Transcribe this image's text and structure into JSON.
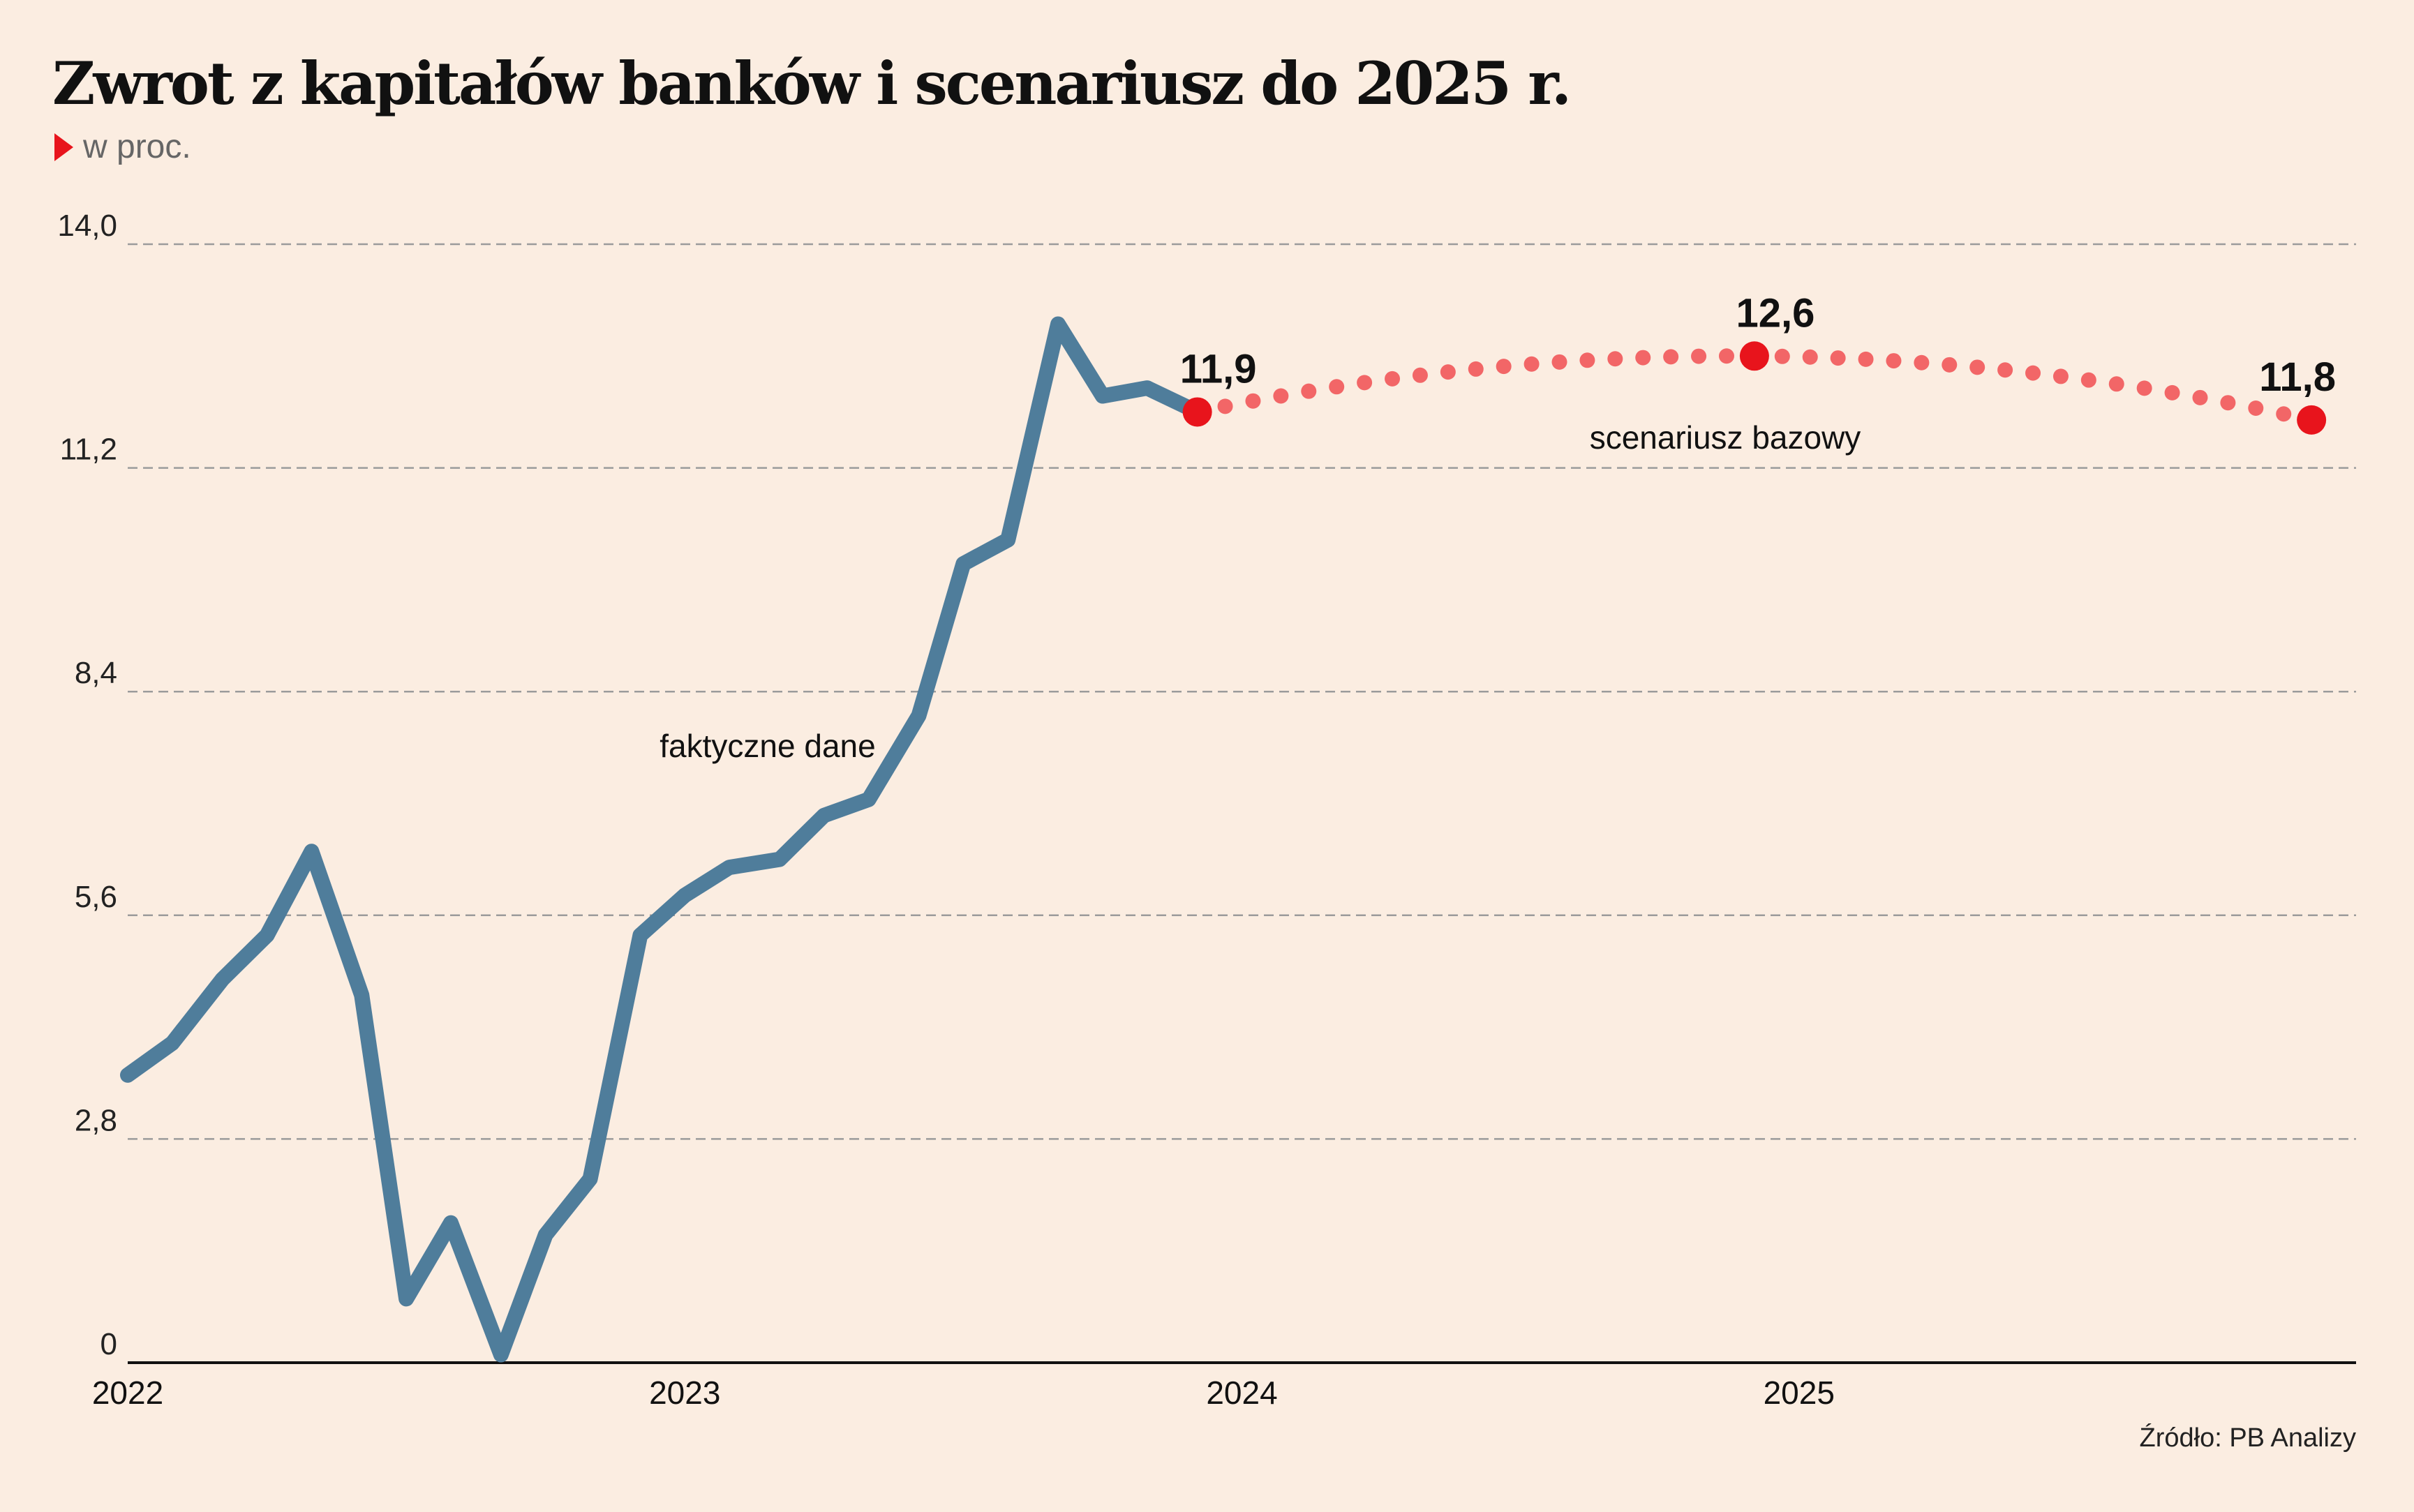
{
  "title": "Zwrot z kapitałów banków i scenariusz do 2025 r.",
  "subtitle": "w proc.",
  "source": "Źródło: PB Analizy",
  "colors": {
    "background": "#fbede1",
    "actual": "#4f7d9b",
    "scenario": "#f26667",
    "scenario_point": "#e8141c",
    "grid": "#9b9b9b",
    "accent": "#e8141c"
  },
  "chart_data": {
    "type": "line",
    "title": "Zwrot z kapitałów banków i scenariusz do 2025 r.",
    "subtitle": "w proc.",
    "xlabel": "",
    "ylabel": "",
    "x_ticks": [
      "2022",
      "2023",
      "2024",
      "2025"
    ],
    "y_ticks": [
      "0",
      "2,8",
      "5,6",
      "8,4",
      "11,2",
      "14,0"
    ],
    "ylim": [
      0,
      14.0
    ],
    "xlim": [
      2022.0,
      2026.0
    ],
    "grid": true,
    "series": [
      {
        "name": "faktyczne dane",
        "style": "solid",
        "points": [
          [
            2022.0,
            3.6
          ],
          [
            2022.08,
            4.0
          ],
          [
            2022.17,
            4.8
          ],
          [
            2022.25,
            5.35
          ],
          [
            2022.33,
            6.4
          ],
          [
            2022.42,
            4.6
          ],
          [
            2022.5,
            0.8
          ],
          [
            2022.58,
            1.75
          ],
          [
            2022.67,
            0.1
          ],
          [
            2022.75,
            1.6
          ],
          [
            2022.83,
            2.3
          ],
          [
            2022.92,
            5.35
          ],
          [
            2023.0,
            5.85
          ],
          [
            2023.08,
            6.2
          ],
          [
            2023.17,
            6.3
          ],
          [
            2023.25,
            6.85
          ],
          [
            2023.33,
            7.05
          ],
          [
            2023.42,
            8.1
          ],
          [
            2023.5,
            10.0
          ],
          [
            2023.58,
            10.3
          ],
          [
            2023.67,
            13.0
          ],
          [
            2023.75,
            12.1
          ],
          [
            2023.83,
            12.2
          ],
          [
            2023.92,
            11.9
          ]
        ]
      },
      {
        "name": "scenariusz bazowy",
        "style": "dotted",
        "points": [
          [
            2023.92,
            11.9
          ],
          [
            2024.92,
            12.6
          ],
          [
            2025.92,
            11.8
          ]
        ],
        "labels": [
          "11,9",
          "12,6",
          "11,8"
        ]
      }
    ],
    "annotations": [
      "faktyczne dane",
      "scenariusz bazowy"
    ]
  }
}
